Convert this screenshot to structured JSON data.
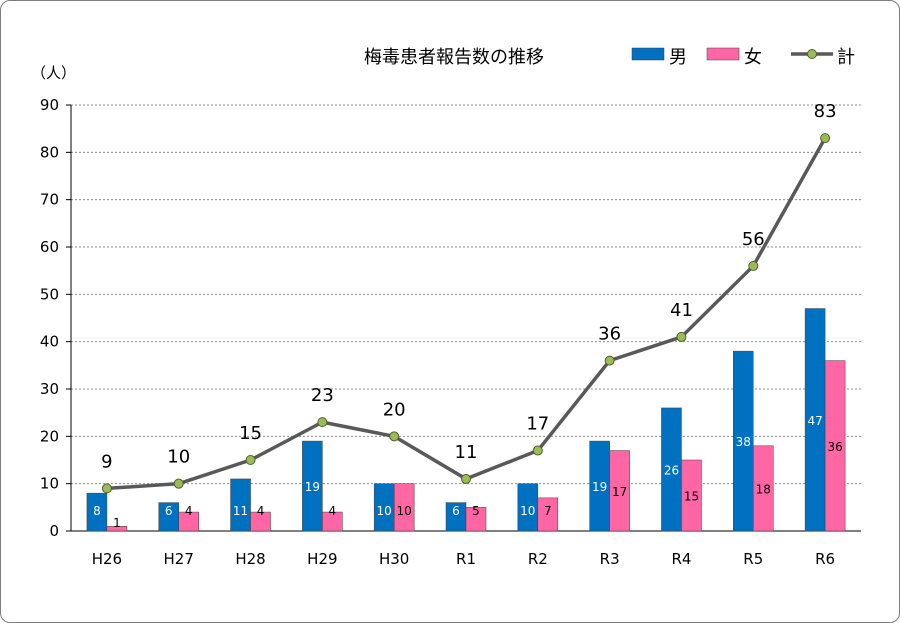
{
  "chart_data": {
    "type": "bar",
    "title": "梅毒患者報告数の推移",
    "ylabel": "（人）",
    "xlabel": "",
    "ylim": [
      0,
      90
    ],
    "yticks": [
      0,
      10,
      20,
      30,
      40,
      50,
      60,
      70,
      80,
      90
    ],
    "grid": true,
    "legend_position": "top-right",
    "categories": [
      "H26",
      "H27",
      "H28",
      "H29",
      "H30",
      "R1",
      "R2",
      "R3",
      "R4",
      "R5",
      "R6"
    ],
    "series": [
      {
        "name": "男",
        "kind": "bar",
        "color": "#0070c0",
        "label_color": "#ffffff",
        "values": [
          8,
          6,
          11,
          19,
          10,
          6,
          10,
          19,
          26,
          38,
          47
        ]
      },
      {
        "name": "女",
        "kind": "bar",
        "color": "#ff66a3",
        "label_color": "#000000",
        "values": [
          1,
          4,
          4,
          4,
          10,
          5,
          7,
          17,
          15,
          18,
          36
        ]
      },
      {
        "name": "計",
        "kind": "line",
        "color": "#595959",
        "marker_color": "#9bbb59",
        "values": [
          9,
          10,
          15,
          23,
          20,
          11,
          17,
          36,
          41,
          56,
          83
        ]
      }
    ]
  }
}
